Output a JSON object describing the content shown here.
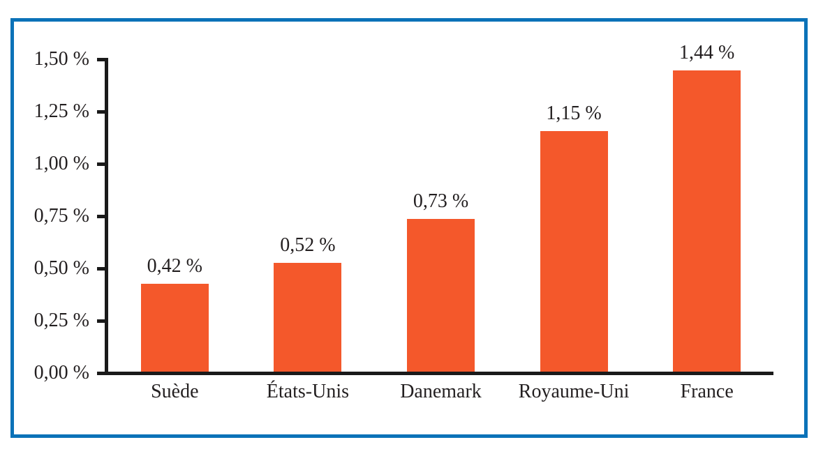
{
  "figure": {
    "frame_border_color": "#0b72b8",
    "background_color": "#ffffff",
    "axis_color": "#1a1a1a",
    "text_color": "#231f20"
  },
  "chart_data": {
    "type": "bar",
    "categories": [
      "Suède",
      "États-Unis",
      "Danemark",
      "Royaume-Uni",
      "France"
    ],
    "values": [
      0.42,
      0.52,
      0.73,
      1.15,
      1.44
    ],
    "value_labels": [
      "0,42 %",
      "0,52 %",
      "0,73 %",
      "1,15 %",
      "1,44 %"
    ],
    "y_ticks": [
      {
        "value": 0.0,
        "label": "0,00 %"
      },
      {
        "value": 0.25,
        "label": "0,25 %"
      },
      {
        "value": 0.5,
        "label": "0,50 %"
      },
      {
        "value": 0.75,
        "label": "0,75 %"
      },
      {
        "value": 1.0,
        "label": "1,00 %"
      },
      {
        "value": 1.25,
        "label": "1,25 %"
      },
      {
        "value": 1.5,
        "label": "1,50 %"
      }
    ],
    "title": "",
    "xlabel": "",
    "ylabel": "",
    "ylim": [
      0,
      1.5
    ],
    "grid": false,
    "legend": null,
    "bar_color": "#f4582b"
  }
}
